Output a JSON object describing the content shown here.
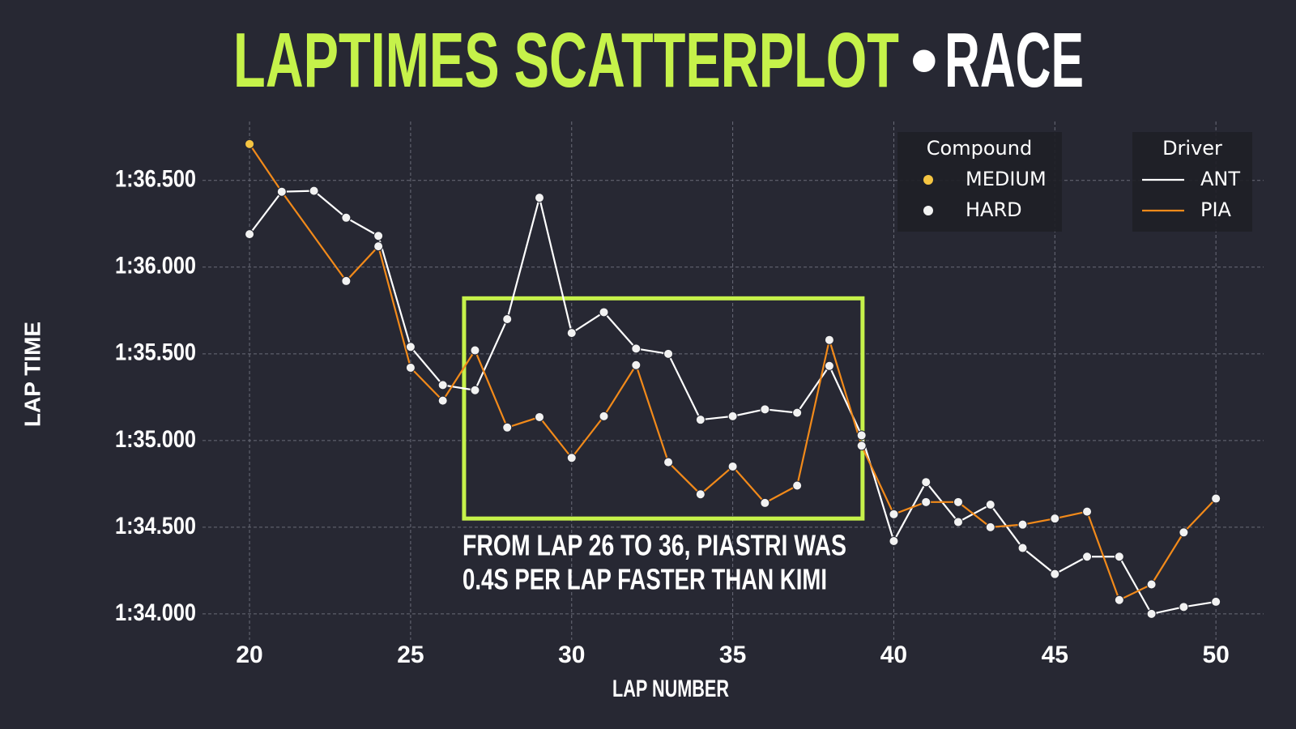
{
  "chart_data": {
    "type": "line",
    "title": {
      "main": "LAPTIMES SCATTERPLOT",
      "separator": "•",
      "session": "RACE"
    },
    "x_label": "LAP NUMBER",
    "y_label": "LAP TIME",
    "xlim": [
      18.54,
      51.48
    ],
    "ylim": [
      93.85,
      96.84
    ],
    "xticks": [
      20,
      25,
      30,
      35,
      40,
      45,
      50
    ],
    "yticks": [
      {
        "value": 94.0,
        "label": "1:34.000"
      },
      {
        "value": 94.5,
        "label": "1:34.500"
      },
      {
        "value": 95.0,
        "label": "1:35.000"
      },
      {
        "value": 95.5,
        "label": "1:35.500"
      },
      {
        "value": 96.0,
        "label": "1:36.000"
      },
      {
        "value": 96.5,
        "label": "1:36.500"
      }
    ],
    "grid": true,
    "compound_legend": {
      "title": "Compound",
      "items": [
        {
          "name": "MEDIUM",
          "color": "#f5c542"
        },
        {
          "name": "HARD",
          "color": "#f2f2f2"
        }
      ]
    },
    "driver_legend": {
      "title": "Driver"
    },
    "series": [
      {
        "name": "ANT",
        "color": "#ffffff",
        "x": [
          20,
          21,
          22,
          23,
          24,
          25,
          26,
          27,
          28,
          29,
          30,
          31,
          32,
          33,
          34,
          35,
          36,
          37,
          38,
          39,
          40,
          41,
          42,
          43,
          44,
          45,
          46,
          47,
          48,
          49,
          50
        ],
        "values": [
          96.19,
          96.435,
          96.44,
          96.285,
          96.18,
          95.54,
          95.32,
          95.29,
          95.7,
          96.4,
          95.62,
          95.74,
          95.53,
          95.5,
          95.12,
          95.14,
          95.18,
          95.16,
          95.43,
          95.03,
          94.42,
          94.76,
          94.53,
          94.63,
          94.38,
          94.23,
          94.33,
          94.33,
          94.0,
          94.04,
          94.07
        ],
        "compound": [
          "HARD",
          "HARD",
          "HARD",
          "HARD",
          "HARD",
          "HARD",
          "HARD",
          "HARD",
          "HARD",
          "HARD",
          "HARD",
          "HARD",
          "HARD",
          "HARD",
          "HARD",
          "HARD",
          "HARD",
          "HARD",
          "HARD",
          "HARD",
          "HARD",
          "HARD",
          "HARD",
          "HARD",
          "HARD",
          "HARD",
          "HARD",
          "HARD",
          "HARD",
          "HARD",
          "HARD"
        ]
      },
      {
        "name": "PIA",
        "color": "#f28a1a",
        "x": [
          20,
          21,
          23,
          24,
          25,
          26,
          27,
          28,
          29,
          30,
          31,
          32,
          33,
          34,
          35,
          36,
          37,
          38,
          39,
          40,
          41,
          42,
          43,
          44,
          45,
          46,
          47,
          48,
          49,
          50
        ],
        "values": [
          96.71,
          96.435,
          95.92,
          96.12,
          95.42,
          95.23,
          95.52,
          95.075,
          95.135,
          94.9,
          95.14,
          95.435,
          94.875,
          94.69,
          94.85,
          94.64,
          94.74,
          95.58,
          94.97,
          94.575,
          94.645,
          94.645,
          94.5,
          94.515,
          94.55,
          94.59,
          94.08,
          94.17,
          94.47,
          94.665
        ],
        "compound": [
          "MEDIUM",
          "HARD",
          "HARD",
          "HARD",
          "HARD",
          "HARD",
          "HARD",
          "HARD",
          "HARD",
          "HARD",
          "HARD",
          "HARD",
          "HARD",
          "HARD",
          "HARD",
          "HARD",
          "HARD",
          "HARD",
          "HARD",
          "HARD",
          "HARD",
          "HARD",
          "HARD",
          "HARD",
          "HARD",
          "HARD",
          "HARD",
          "HARD",
          "HARD",
          "HARD"
        ]
      }
    ],
    "highlight": {
      "x": [
        26.66,
        39.03
      ],
      "y": [
        94.55,
        95.82
      ],
      "color": "#c6f24a"
    },
    "annotation": [
      "FROM LAP 26 TO 36, PIASTRI WAS",
      "0.4S PER LAP FASTER THAN KIMI"
    ]
  }
}
